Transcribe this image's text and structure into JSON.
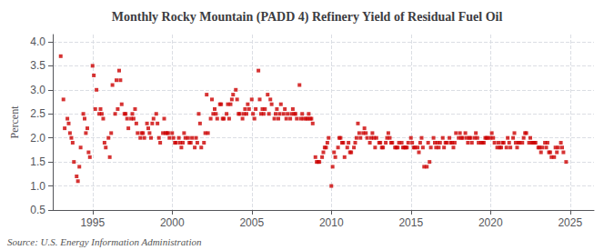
{
  "chart_data": {
    "type": "scatter",
    "title": "Monthly Rocky Mountain (PADD 4) Refinery Yield of Residual Fuel Oil",
    "ylabel": "Percent",
    "annotations": [
      "Source: U.S. Energy Information Administration"
    ],
    "color": "#cc0000",
    "marker": "square",
    "grid": true,
    "xlim": [
      1992.5,
      2026.5
    ],
    "xticks": [
      1995,
      2000,
      2005,
      2010,
      2015,
      2020,
      2025
    ],
    "ylim": [
      0.5,
      4.15
    ],
    "yticks": [
      0.5,
      {
        "value": 1.0,
        "label": "1.0"
      },
      1.5,
      {
        "value": 2.0,
        "label": "2.0"
      },
      2.5,
      {
        "value": 3.0,
        "label": "3.0"
      },
      3.5,
      {
        "value": 4.0,
        "label": "4.0"
      }
    ],
    "x": [
      1993.0,
      1993.17,
      1993.25,
      1993.42,
      1993.5,
      1993.58,
      1993.67,
      1993.75,
      1993.83,
      1994.0,
      1994.08,
      1994.17,
      1994.25,
      1994.42,
      1994.5,
      1994.58,
      1994.67,
      1994.75,
      1994.83,
      1995.0,
      1995.08,
      1995.17,
      1995.25,
      1995.42,
      1995.5,
      1995.58,
      1995.67,
      1995.75,
      1995.83,
      1996.0,
      1996.08,
      1996.17,
      1996.25,
      1996.42,
      1996.5,
      1996.58,
      1996.67,
      1996.75,
      1996.83,
      1997.0,
      1997.08,
      1997.17,
      1997.25,
      1997.42,
      1997.5,
      1997.58,
      1997.67,
      1997.75,
      1997.83,
      1998.0,
      1998.08,
      1998.17,
      1998.25,
      1998.42,
      1998.5,
      1998.58,
      1998.67,
      1998.75,
      1998.83,
      1999.0,
      1999.08,
      1999.17,
      1999.25,
      1999.42,
      1999.5,
      1999.58,
      1999.67,
      1999.75,
      1999.83,
      2000.0,
      2000.08,
      2000.17,
      2000.25,
      2000.42,
      2000.5,
      2000.58,
      2000.67,
      2000.75,
      2000.83,
      2001.0,
      2001.08,
      2001.17,
      2001.25,
      2001.42,
      2001.5,
      2001.58,
      2001.67,
      2001.75,
      2001.83,
      2002.0,
      2002.08,
      2002.17,
      2002.25,
      2002.42,
      2002.5,
      2002.58,
      2002.67,
      2002.75,
      2002.83,
      2003.0,
      2003.08,
      2003.17,
      2003.25,
      2003.42,
      2003.5,
      2003.58,
      2003.67,
      2003.75,
      2003.83,
      2004.0,
      2004.08,
      2004.17,
      2004.25,
      2004.42,
      2004.5,
      2004.58,
      2004.67,
      2004.75,
      2004.83,
      2005.0,
      2005.08,
      2005.17,
      2005.25,
      2005.42,
      2005.5,
      2005.58,
      2005.67,
      2005.75,
      2005.83,
      2006.0,
      2006.08,
      2006.17,
      2006.25,
      2006.42,
      2006.5,
      2006.58,
      2006.67,
      2006.75,
      2006.83,
      2007.0,
      2007.08,
      2007.17,
      2007.25,
      2007.42,
      2007.5,
      2007.58,
      2007.67,
      2007.75,
      2007.83,
      2008.0,
      2008.08,
      2008.17,
      2008.25,
      2008.42,
      2008.5,
      2008.58,
      2008.67,
      2008.75,
      2008.83,
      2009.0,
      2009.08,
      2009.17,
      2009.25,
      2009.42,
      2009.5,
      2009.58,
      2009.67,
      2009.75,
      2009.83,
      2010.0,
      2010.08,
      2010.17,
      2010.25,
      2010.42,
      2010.5,
      2010.58,
      2010.67,
      2010.75,
      2010.83,
      2011.0,
      2011.08,
      2011.17,
      2011.25,
      2011.42,
      2011.5,
      2011.58,
      2011.67,
      2011.75,
      2011.83,
      2012.0,
      2012.08,
      2012.17,
      2012.25,
      2012.42,
      2012.5,
      2012.58,
      2012.67,
      2012.75,
      2012.83,
      2013.0,
      2013.08,
      2013.17,
      2013.25,
      2013.42,
      2013.5,
      2013.58,
      2013.67,
      2013.75,
      2013.83,
      2014.0,
      2014.08,
      2014.17,
      2014.25,
      2014.42,
      2014.5,
      2014.58,
      2014.67,
      2014.75,
      2014.83,
      2015.0,
      2015.08,
      2015.17,
      2015.25,
      2015.42,
      2015.5,
      2015.58,
      2015.67,
      2015.75,
      2015.83,
      2016.0,
      2016.08,
      2016.17,
      2016.25,
      2016.42,
      2016.5,
      2016.58,
      2016.67,
      2016.75,
      2016.83,
      2017.0,
      2017.08,
      2017.17,
      2017.25,
      2017.42,
      2017.5,
      2017.58,
      2017.67,
      2017.75,
      2017.83,
      2018.0,
      2018.08,
      2018.17,
      2018.25,
      2018.42,
      2018.5,
      2018.58,
      2018.67,
      2018.75,
      2018.83,
      2019.0,
      2019.08,
      2019.17,
      2019.25,
      2019.42,
      2019.5,
      2019.58,
      2019.67,
      2019.75,
      2019.83,
      2020.0,
      2020.08,
      2020.17,
      2020.25,
      2020.42,
      2020.5,
      2020.58,
      2020.67,
      2020.75,
      2020.83,
      2021.0,
      2021.08,
      2021.17,
      2021.25,
      2021.42,
      2021.5,
      2021.58,
      2021.67,
      2021.75,
      2021.83,
      2022.0,
      2022.08,
      2022.17,
      2022.25,
      2022.42,
      2022.5,
      2022.58,
      2022.67,
      2022.75,
      2022.83,
      2023.0,
      2023.08,
      2023.17,
      2023.25,
      2023.42,
      2023.5,
      2023.58,
      2023.67,
      2023.75,
      2023.83,
      2024.0,
      2024.08,
      2024.17,
      2024.25,
      2024.42,
      2024.5,
      2024.58,
      2024.75
    ],
    "values": [
      3.7,
      2.8,
      2.2,
      2.4,
      2.3,
      2.1,
      2.0,
      1.9,
      1.5,
      1.2,
      1.1,
      1.4,
      1.8,
      2.5,
      2.4,
      2.1,
      2.2,
      1.7,
      1.6,
      3.5,
      3.3,
      2.6,
      3.0,
      2.5,
      2.6,
      2.5,
      2.4,
      1.9,
      1.8,
      2.0,
      1.6,
      2.1,
      3.1,
      2.5,
      3.2,
      2.6,
      3.4,
      3.2,
      2.7,
      2.5,
      2.5,
      2.4,
      2.2,
      2.4,
      2.5,
      2.4,
      2.6,
      2.3,
      2.1,
      2.0,
      2.1,
      2.1,
      2.0,
      2.3,
      2.2,
      2.1,
      2.0,
      2.3,
      2.4,
      2.5,
      2.3,
      2.0,
      1.9,
      2.1,
      2.4,
      2.1,
      2.1,
      2.1,
      2.0,
      2.1,
      2.0,
      1.9,
      1.9,
      2.0,
      1.9,
      1.8,
      1.9,
      2.1,
      2.0,
      2.0,
      1.9,
      1.9,
      2.0,
      1.8,
      2.0,
      1.9,
      2.5,
      2.3,
      1.8,
      1.9,
      2.1,
      2.9,
      2.1,
      2.4,
      2.8,
      2.5,
      2.6,
      2.5,
      2.4,
      2.7,
      2.7,
      2.4,
      2.4,
      2.5,
      2.7,
      2.4,
      2.7,
      2.8,
      2.9,
      3.0,
      2.8,
      2.5,
      2.5,
      2.4,
      2.5,
      2.6,
      2.5,
      2.7,
      2.6,
      2.8,
      2.5,
      2.4,
      2.6,
      3.4,
      2.8,
      2.5,
      2.6,
      2.5,
      2.6,
      2.9,
      2.5,
      2.8,
      2.7,
      2.4,
      2.5,
      2.6,
      2.4,
      2.5,
      2.7,
      2.5,
      2.6,
      2.4,
      2.5,
      2.4,
      2.5,
      2.6,
      2.5,
      2.5,
      2.4,
      3.1,
      2.4,
      2.5,
      2.4,
      2.4,
      2.4,
      2.5,
      2.4,
      2.4,
      2.3,
      1.6,
      1.5,
      1.5,
      1.5,
      1.6,
      1.7,
      1.8,
      1.8,
      1.9,
      2.0,
      1.0,
      1.4,
      1.7,
      1.6,
      1.8,
      2.0,
      2.0,
      1.9,
      1.9,
      1.6,
      1.8,
      1.9,
      1.7,
      1.7,
      1.8,
      1.9,
      2.0,
      2.3,
      2.1,
      2.0,
      2.1,
      2.2,
      2.1,
      2.0,
      1.9,
      2.0,
      2.1,
      2.0,
      1.8,
      2.0,
      1.9,
      1.9,
      1.8,
      1.8,
      1.9,
      2.0,
      2.1,
      2.0,
      1.9,
      1.9,
      1.8,
      1.8,
      1.8,
      1.9,
      1.9,
      1.8,
      1.8,
      1.8,
      1.8,
      1.9,
      2.0,
      1.9,
      1.8,
      1.8,
      1.8,
      1.7,
      1.9,
      2.0,
      1.8,
      1.4,
      1.4,
      1.9,
      1.5,
      1.8,
      2.0,
      1.9,
      1.8,
      1.9,
      1.8,
      1.9,
      2.0,
      1.8,
      1.9,
      1.9,
      2.0,
      1.9,
      1.9,
      1.8,
      1.9,
      2.1,
      2.0,
      2.1,
      2.0,
      2.0,
      2.1,
      2.0,
      1.9,
      2.0,
      2.0,
      1.9,
      2.0,
      2.1,
      2.0,
      1.9,
      1.9,
      1.9,
      1.9,
      2.0,
      2.0,
      2.0,
      2.0,
      2.1,
      2.0,
      1.9,
      1.8,
      1.9,
      1.8,
      1.8,
      1.9,
      1.9,
      1.8,
      2.0,
      1.9,
      1.8,
      2.0,
      2.1,
      1.9,
      1.8,
      1.9,
      1.9,
      1.9,
      2.0,
      2.1,
      2.1,
      1.9,
      2.0,
      1.9,
      1.9,
      1.9,
      1.9,
      1.8,
      1.8,
      1.7,
      1.8,
      1.9,
      1.8,
      1.9,
      1.7,
      1.7,
      1.6,
      1.6,
      1.8,
      1.7,
      1.8,
      1.9,
      1.8,
      1.7,
      1.5
    ]
  }
}
